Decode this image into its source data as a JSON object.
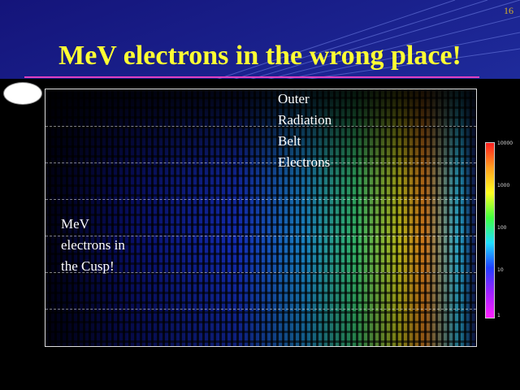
{
  "slide": {
    "number": "16",
    "title": "MeV electrons in the wrong place!"
  },
  "annotations": [
    {
      "lines": [
        "Outer",
        "Radiation",
        "Belt",
        "Electrons"
      ]
    },
    {
      "lines": [
        "MeV",
        "electrons in",
        "the Cusp!"
      ]
    }
  ],
  "colorbar": {
    "labels": [
      "10000",
      "1000",
      "100",
      "10",
      "1"
    ]
  }
}
